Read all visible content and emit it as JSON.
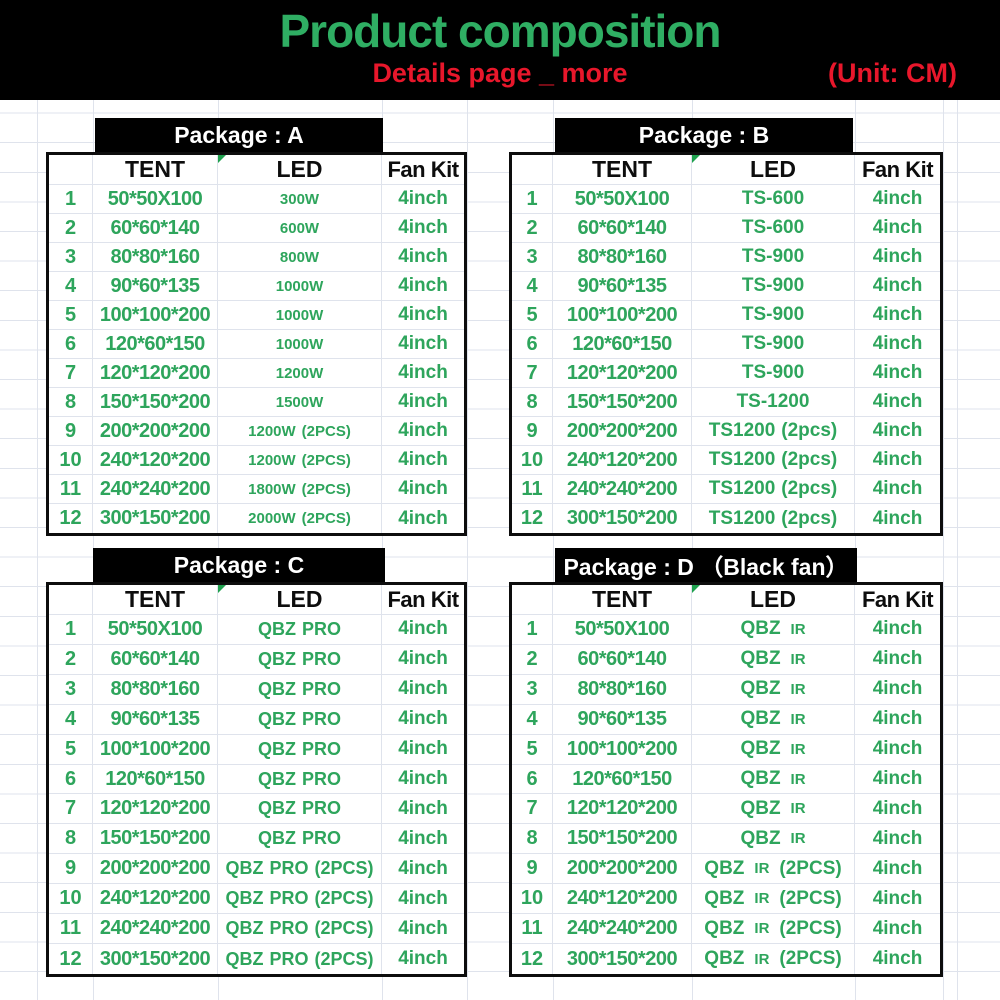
{
  "banner": {
    "title": "Product composition",
    "subtitle": "Details page _ more",
    "unit": "(Unit: CM)"
  },
  "colors": {
    "accent_green": "#2ea55c",
    "title_green": "#2fae63",
    "accent_red": "#e8172b",
    "band_background": "#000000",
    "grid_line": "#dfe3ec",
    "corner_marker_green": "#1fa14e"
  },
  "table_columns": [
    "TENT",
    "LED",
    "Fan Kit"
  ],
  "tables": [
    {
      "id": "A",
      "title": "Package : A",
      "small_token": "",
      "rows": [
        {
          "no": "1",
          "tent": "50*50X100",
          "led": "300W",
          "fan": "4inch"
        },
        {
          "no": "2",
          "tent": "60*60*140",
          "led": "600W",
          "fan": "4inch"
        },
        {
          "no": "3",
          "tent": "80*80*160",
          "led": "800W",
          "fan": "4inch"
        },
        {
          "no": "4",
          "tent": "90*60*135",
          "led": "1000W",
          "fan": "4inch"
        },
        {
          "no": "5",
          "tent": "100*100*200",
          "led": "1000W",
          "fan": "4inch"
        },
        {
          "no": "6",
          "tent": "120*60*150",
          "led": "1000W",
          "fan": "4inch"
        },
        {
          "no": "7",
          "tent": "120*120*200",
          "led": "1200W",
          "fan": "4inch"
        },
        {
          "no": "8",
          "tent": "150*150*200",
          "led": "1500W",
          "fan": "4inch"
        },
        {
          "no": "9",
          "tent": "200*200*200",
          "led": "1200W (2PCS)",
          "fan": "4inch"
        },
        {
          "no": "10",
          "tent": "240*120*200",
          "led": "1200W (2PCS)",
          "fan": "4inch"
        },
        {
          "no": "11",
          "tent": "240*240*200",
          "led": "1800W (2PCS)",
          "fan": "4inch"
        },
        {
          "no": "12",
          "tent": "300*150*200",
          "led": "2000W (2PCS)",
          "fan": "4inch"
        }
      ]
    },
    {
      "id": "B",
      "title": "Package : B",
      "small_token": "",
      "rows": [
        {
          "no": "1",
          "tent": "50*50X100",
          "led": "TS-600",
          "fan": "4inch"
        },
        {
          "no": "2",
          "tent": "60*60*140",
          "led": "TS-600",
          "fan": "4inch"
        },
        {
          "no": "3",
          "tent": "80*80*160",
          "led": "TS-900",
          "fan": "4inch"
        },
        {
          "no": "4",
          "tent": "90*60*135",
          "led": "TS-900",
          "fan": "4inch"
        },
        {
          "no": "5",
          "tent": "100*100*200",
          "led": "TS-900",
          "fan": "4inch"
        },
        {
          "no": "6",
          "tent": "120*60*150",
          "led": "TS-900",
          "fan": "4inch"
        },
        {
          "no": "7",
          "tent": "120*120*200",
          "led": "TS-900",
          "fan": "4inch"
        },
        {
          "no": "8",
          "tent": "150*150*200",
          "led": "TS-1200",
          "fan": "4inch"
        },
        {
          "no": "9",
          "tent": "200*200*200",
          "led": "TS1200 (2pcs)",
          "fan": "4inch"
        },
        {
          "no": "10",
          "tent": "240*120*200",
          "led": "TS1200 (2pcs)",
          "fan": "4inch"
        },
        {
          "no": "11",
          "tent": "240*240*200",
          "led": "TS1200 (2pcs)",
          "fan": "4inch"
        },
        {
          "no": "12",
          "tent": "300*150*200",
          "led": "TS1200 (2pcs)",
          "fan": "4inch"
        }
      ]
    },
    {
      "id": "C",
      "title": "Package : C",
      "small_token": "",
      "rows": [
        {
          "no": "1",
          "tent": "50*50X100",
          "led": "QBZ PRO",
          "fan": "4inch"
        },
        {
          "no": "2",
          "tent": "60*60*140",
          "led": "QBZ PRO",
          "fan": "4inch"
        },
        {
          "no": "3",
          "tent": "80*80*160",
          "led": "QBZ PRO",
          "fan": "4inch"
        },
        {
          "no": "4",
          "tent": "90*60*135",
          "led": "QBZ PRO",
          "fan": "4inch"
        },
        {
          "no": "5",
          "tent": "100*100*200",
          "led": "QBZ PRO",
          "fan": "4inch"
        },
        {
          "no": "6",
          "tent": "120*60*150",
          "led": "QBZ PRO",
          "fan": "4inch"
        },
        {
          "no": "7",
          "tent": "120*120*200",
          "led": "QBZ PRO",
          "fan": "4inch"
        },
        {
          "no": "8",
          "tent": "150*150*200",
          "led": "QBZ PRO",
          "fan": "4inch"
        },
        {
          "no": "9",
          "tent": "200*200*200",
          "led": "QBZ PRO (2PCS)",
          "fan": "4inch"
        },
        {
          "no": "10",
          "tent": "240*120*200",
          "led": "QBZ PRO (2PCS)",
          "fan": "4inch"
        },
        {
          "no": "11",
          "tent": "240*240*200",
          "led": "QBZ PRO (2PCS)",
          "fan": "4inch"
        },
        {
          "no": "12",
          "tent": "300*150*200",
          "led": "QBZ PRO (2PCS)",
          "fan": "4inch"
        }
      ]
    },
    {
      "id": "D",
      "title": "Package : D （Black fan）",
      "small_token": "IR",
      "rows": [
        {
          "no": "1",
          "tent": "50*50X100",
          "led": "QBZ IR",
          "fan": "4inch"
        },
        {
          "no": "2",
          "tent": "60*60*140",
          "led": "QBZ IR",
          "fan": "4inch"
        },
        {
          "no": "3",
          "tent": "80*80*160",
          "led": "QBZ IR",
          "fan": "4inch"
        },
        {
          "no": "4",
          "tent": "90*60*135",
          "led": "QBZ IR",
          "fan": "4inch"
        },
        {
          "no": "5",
          "tent": "100*100*200",
          "led": "QBZ IR",
          "fan": "4inch"
        },
        {
          "no": "6",
          "tent": "120*60*150",
          "led": "QBZ IR",
          "fan": "4inch"
        },
        {
          "no": "7",
          "tent": "120*120*200",
          "led": "QBZ IR",
          "fan": "4inch"
        },
        {
          "no": "8",
          "tent": "150*150*200",
          "led": "QBZ IR",
          "fan": "4inch"
        },
        {
          "no": "9",
          "tent": "200*200*200",
          "led": "QBZ IR (2PCS)",
          "fan": "4inch"
        },
        {
          "no": "10",
          "tent": "240*120*200",
          "led": "QBZ IR (2PCS)",
          "fan": "4inch"
        },
        {
          "no": "11",
          "tent": "240*240*200",
          "led": "QBZ IR (2PCS)",
          "fan": "4inch"
        },
        {
          "no": "12",
          "tent": "300*150*200",
          "led": "QBZ IR (2PCS)",
          "fan": "4inch"
        }
      ]
    }
  ]
}
